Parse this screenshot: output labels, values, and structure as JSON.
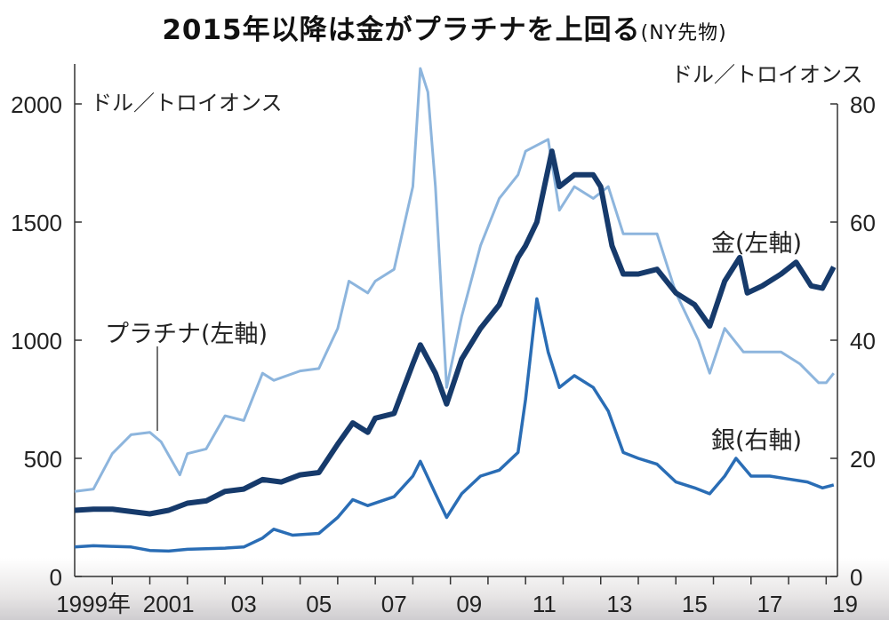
{
  "chart_data": {
    "type": "line",
    "title": "2015年以降は金がプラチナを上回る",
    "subtitle": "(NY先物)",
    "ylabel_left": "ドル／トロイオンス",
    "ylabel_right": "ドル／トロイオンス",
    "ylim_left": [
      0,
      2000
    ],
    "ylim_right": [
      0,
      80
    ],
    "yticks_left": [
      0,
      500,
      1000,
      1500,
      2000
    ],
    "yticks_right": [
      0,
      20,
      40,
      60,
      80
    ],
    "xlim": [
      1999,
      2019.3
    ],
    "xtick_labels": [
      "1999年",
      "2001",
      "03",
      "05",
      "07",
      "09",
      "11",
      "13",
      "15",
      "17",
      "19"
    ],
    "grid": false,
    "series": [
      {
        "name": "プラチナ(左軸)",
        "axis": "left",
        "color": "#8db5dd",
        "x": [
          1999,
          1999.5,
          2000,
          2000.5,
          2001,
          2001.3,
          2001.8,
          2002,
          2002.5,
          2003,
          2003.5,
          2004,
          2004.3,
          2005,
          2005.5,
          2006,
          2006.3,
          2006.8,
          2007,
          2007.5,
          2008,
          2008.2,
          2008.4,
          2008.6,
          2008.9,
          2009.3,
          2009.8,
          2010.3,
          2010.8,
          2011,
          2011.6,
          2011.9,
          2012.3,
          2012.8,
          2013.2,
          2013.6,
          2014,
          2014.5,
          2015,
          2015.6,
          2015.9,
          2016.3,
          2016.8,
          2017.3,
          2017.8,
          2018.3,
          2018.8,
          2019,
          2019.2
        ],
        "y": [
          360,
          370,
          520,
          600,
          610,
          570,
          430,
          520,
          540,
          680,
          660,
          860,
          830,
          870,
          880,
          1050,
          1250,
          1200,
          1250,
          1300,
          1650,
          2150,
          2050,
          1650,
          800,
          1100,
          1400,
          1600,
          1700,
          1800,
          1850,
          1550,
          1650,
          1600,
          1650,
          1450,
          1450,
          1450,
          1200,
          1000,
          860,
          1050,
          950,
          950,
          950,
          900,
          820,
          820,
          860
        ]
      },
      {
        "name": "金(左軸)",
        "axis": "left",
        "color": "#163a6b",
        "x": [
          1999,
          1999.5,
          2000,
          2000.5,
          2001,
          2001.5,
          2002,
          2002.5,
          2003,
          2003.5,
          2004,
          2004.5,
          2005,
          2005.5,
          2006,
          2006.4,
          2006.8,
          2007,
          2007.5,
          2008,
          2008.2,
          2008.6,
          2008.9,
          2009.3,
          2009.8,
          2010.3,
          2010.8,
          2011,
          2011.3,
          2011.7,
          2011.9,
          2012.3,
          2012.8,
          2013,
          2013.3,
          2013.6,
          2014,
          2014.5,
          2015,
          2015.5,
          2015.9,
          2016.3,
          2016.7,
          2016.9,
          2017.3,
          2017.8,
          2018.2,
          2018.6,
          2018.9,
          2019.2
        ],
        "y": [
          280,
          285,
          285,
          275,
          265,
          280,
          310,
          320,
          360,
          370,
          410,
          400,
          430,
          440,
          560,
          650,
          610,
          670,
          690,
          900,
          980,
          860,
          730,
          920,
          1050,
          1150,
          1350,
          1400,
          1500,
          1800,
          1650,
          1700,
          1700,
          1650,
          1400,
          1280,
          1280,
          1300,
          1200,
          1150,
          1060,
          1250,
          1350,
          1200,
          1230,
          1280,
          1330,
          1230,
          1220,
          1310
        ]
      },
      {
        "name": "銀(右軸)",
        "axis": "right",
        "color": "#2a6db5",
        "x": [
          1999,
          1999.5,
          2000,
          2000.5,
          2001,
          2001.5,
          2002,
          2002.5,
          2003,
          2003.5,
          2004,
          2004.3,
          2004.8,
          2005.5,
          2006,
          2006.4,
          2006.8,
          2007.5,
          2008,
          2008.2,
          2008.6,
          2008.9,
          2009.3,
          2009.8,
          2010.3,
          2010.8,
          2011,
          2011.3,
          2011.6,
          2011.9,
          2012.3,
          2012.8,
          2013.2,
          2013.6,
          2014,
          2014.5,
          2015,
          2015.5,
          2015.9,
          2016.3,
          2016.6,
          2017,
          2017.5,
          2018,
          2018.5,
          2018.9,
          2019.2
        ],
        "y": [
          5,
          5.2,
          5.1,
          5,
          4.4,
          4.3,
          4.6,
          4.7,
          4.8,
          5,
          6.5,
          8,
          7,
          7.3,
          10,
          13,
          12,
          13.5,
          17,
          19.5,
          14,
          10,
          14,
          17,
          18,
          21,
          30,
          47,
          38,
          32,
          34,
          32,
          28,
          21,
          20,
          19,
          16,
          15,
          14,
          17,
          20,
          17,
          17,
          16.5,
          16,
          15,
          15.5
        ]
      }
    ]
  }
}
